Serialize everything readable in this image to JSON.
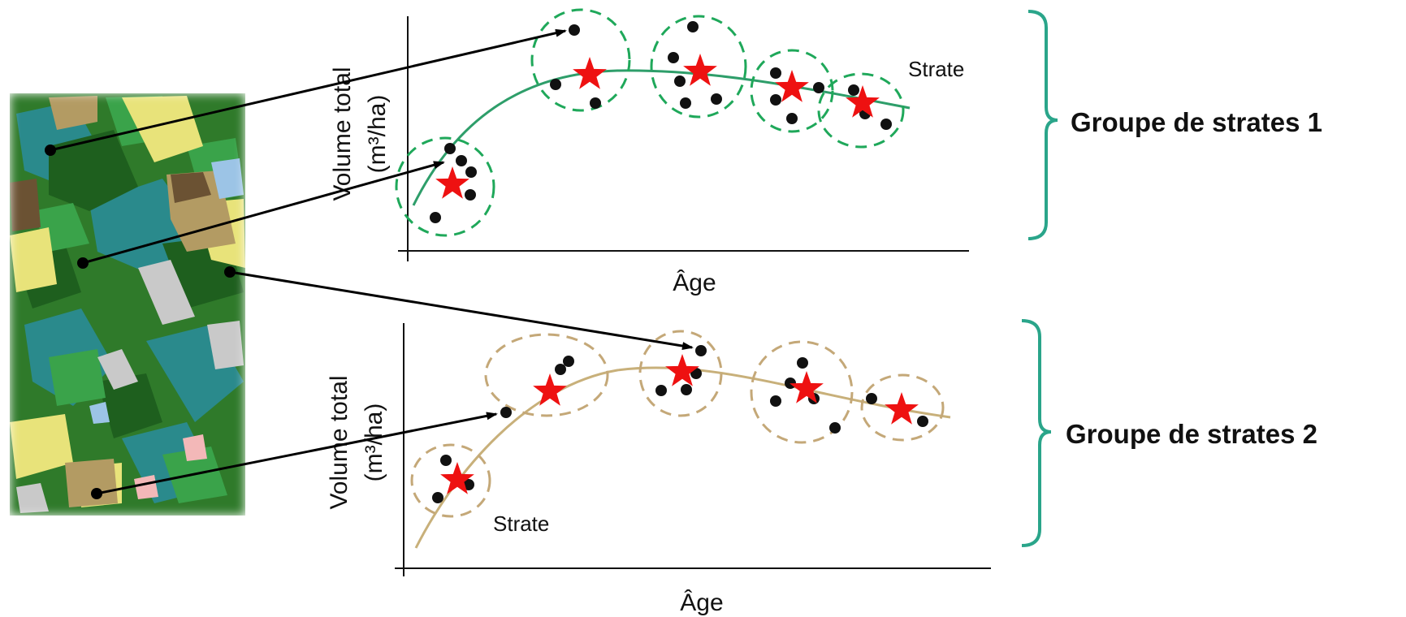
{
  "colors": {
    "group1_curve": "#2e9e6a",
    "group1_circle": "#1fa85a",
    "group2_curve": "#c8b07a",
    "group2_circle": "#c4a878",
    "star": "#ee1111",
    "dot": "#111111",
    "bracket": "#2aa58a",
    "arrow": "#000000"
  },
  "icons": {
    "star": "red-star-icon",
    "map": "forest-strata-map-image"
  },
  "charts": {
    "group1": {
      "ylabel_line1": "Volume total",
      "ylabel_line2": "(m³/ha)",
      "xlabel": "Âge",
      "strate_label": "Strate",
      "bracket_label": "Groupe de strates 1"
    },
    "group2": {
      "ylabel_line1": "Volume total",
      "ylabel_line2": "(m³/ha)",
      "xlabel": "Âge",
      "strate_label": "Strate",
      "bracket_label": "Groupe de strates 2"
    }
  }
}
